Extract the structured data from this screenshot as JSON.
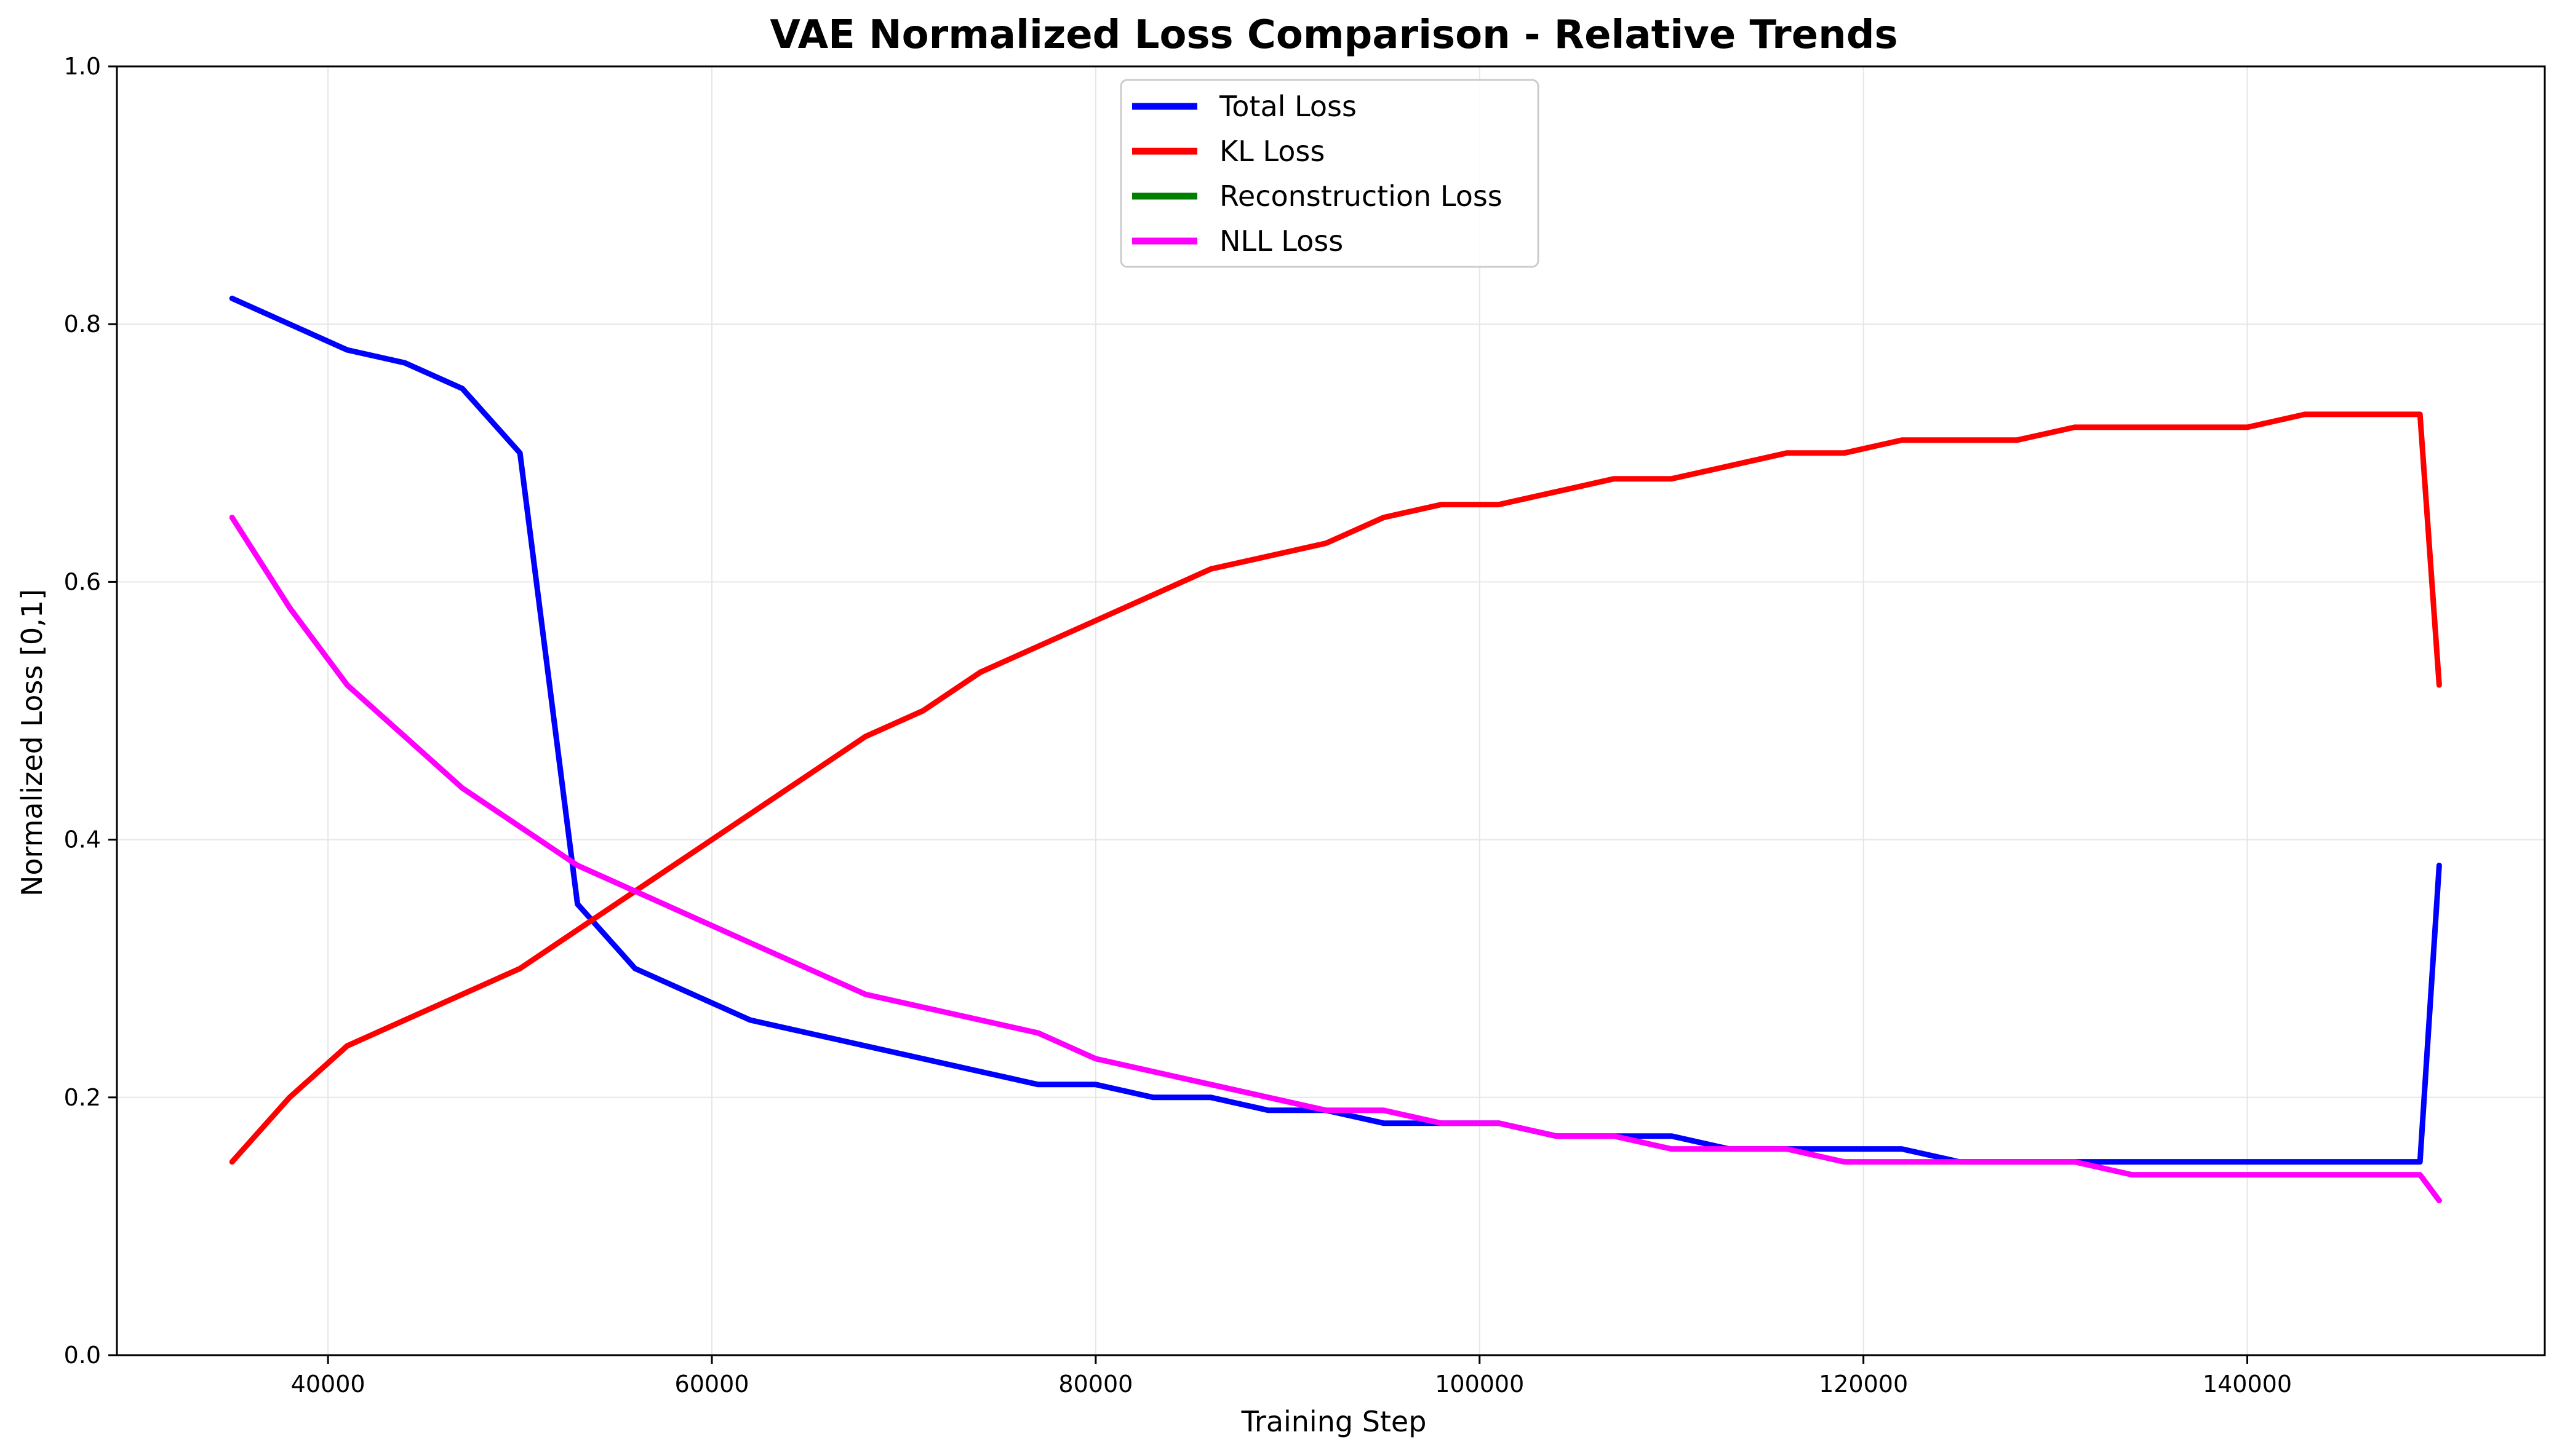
{
  "chart_data": {
    "type": "line",
    "title": "VAE Normalized Loss Comparison - Relative Trends",
    "xlabel": "Training Step",
    "ylabel": "Normalized Loss [0,1]",
    "xlim": [
      29000,
      155500
    ],
    "ylim": [
      0,
      1
    ],
    "xticks": [
      40000,
      60000,
      80000,
      100000,
      120000,
      140000
    ],
    "yticks": [
      0.0,
      0.2,
      0.4,
      0.6,
      0.8,
      1.0
    ],
    "grid": true,
    "legend_position": "top-center",
    "series": [
      {
        "name": "Total Loss",
        "color": "#0000ff",
        "x": [
          35000,
          38000,
          41000,
          44000,
          47000,
          50000,
          53000,
          56000,
          59000,
          62000,
          65000,
          68000,
          71000,
          74000,
          77000,
          80000,
          83000,
          86000,
          89000,
          92000,
          95000,
          98000,
          101000,
          104000,
          107000,
          110000,
          113000,
          116000,
          119000,
          122000,
          125000,
          128000,
          131000,
          134000,
          137000,
          140000,
          143000,
          146000,
          149000,
          150000
        ],
        "values": [
          0.82,
          0.8,
          0.78,
          0.77,
          0.75,
          0.7,
          0.35,
          0.3,
          0.28,
          0.26,
          0.25,
          0.24,
          0.23,
          0.22,
          0.21,
          0.21,
          0.2,
          0.2,
          0.19,
          0.19,
          0.18,
          0.18,
          0.18,
          0.17,
          0.17,
          0.17,
          0.16,
          0.16,
          0.16,
          0.16,
          0.15,
          0.15,
          0.15,
          0.15,
          0.15,
          0.15,
          0.15,
          0.15,
          0.15,
          0.38
        ]
      },
      {
        "name": "KL Loss",
        "color": "#ff0000",
        "x": [
          35000,
          38000,
          41000,
          44000,
          47000,
          50000,
          53000,
          56000,
          59000,
          62000,
          65000,
          68000,
          71000,
          74000,
          77000,
          80000,
          83000,
          86000,
          89000,
          92000,
          95000,
          98000,
          101000,
          104000,
          107000,
          110000,
          113000,
          116000,
          119000,
          122000,
          125000,
          128000,
          131000,
          134000,
          137000,
          140000,
          143000,
          146000,
          149000,
          150000
        ],
        "values": [
          0.15,
          0.2,
          0.24,
          0.26,
          0.28,
          0.3,
          0.33,
          0.36,
          0.39,
          0.42,
          0.45,
          0.48,
          0.5,
          0.53,
          0.55,
          0.57,
          0.59,
          0.61,
          0.62,
          0.63,
          0.65,
          0.66,
          0.66,
          0.67,
          0.68,
          0.68,
          0.69,
          0.7,
          0.7,
          0.71,
          0.71,
          0.71,
          0.72,
          0.72,
          0.72,
          0.72,
          0.73,
          0.73,
          0.73,
          0.52
        ]
      },
      {
        "name": "Reconstruction Loss",
        "color": "#008000",
        "x": [],
        "values": []
      },
      {
        "name": "NLL Loss",
        "color": "#ff00ff",
        "x": [
          35000,
          38000,
          41000,
          44000,
          47000,
          50000,
          53000,
          56000,
          59000,
          62000,
          65000,
          68000,
          71000,
          74000,
          77000,
          80000,
          83000,
          86000,
          89000,
          92000,
          95000,
          98000,
          101000,
          104000,
          107000,
          110000,
          113000,
          116000,
          119000,
          122000,
          125000,
          128000,
          131000,
          134000,
          137000,
          140000,
          143000,
          146000,
          149000,
          150000
        ],
        "values": [
          0.65,
          0.58,
          0.52,
          0.48,
          0.44,
          0.41,
          0.38,
          0.36,
          0.34,
          0.32,
          0.3,
          0.28,
          0.27,
          0.26,
          0.25,
          0.23,
          0.22,
          0.21,
          0.2,
          0.19,
          0.19,
          0.18,
          0.18,
          0.17,
          0.17,
          0.16,
          0.16,
          0.16,
          0.15,
          0.15,
          0.15,
          0.15,
          0.15,
          0.14,
          0.14,
          0.14,
          0.14,
          0.14,
          0.14,
          0.12
        ]
      }
    ]
  }
}
